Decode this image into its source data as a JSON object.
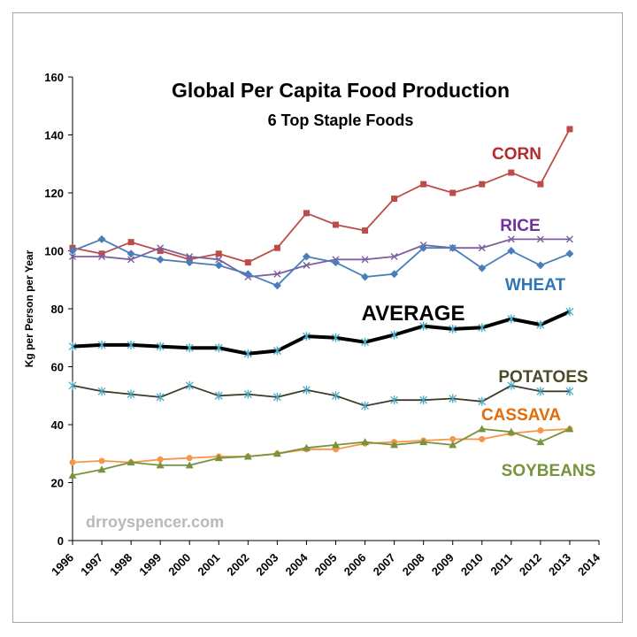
{
  "chart_data": {
    "type": "line",
    "title": "Global Per Capita Food Production",
    "subtitle": "6 Top Staple Foods",
    "ylabel": "Kg per Person per Year",
    "xlabel": "",
    "watermark": "drroyspencer.com",
    "ylim": [
      0,
      160
    ],
    "yticks": [
      0,
      20,
      40,
      60,
      80,
      100,
      120,
      140,
      160
    ],
    "xlim": [
      1996,
      2014
    ],
    "xticks": [
      "1996",
      "1997",
      "1998",
      "1999",
      "2000",
      "2001",
      "2002",
      "2003",
      "2004",
      "2005",
      "2006",
      "2007",
      "2008",
      "2009",
      "2010",
      "2011",
      "2012",
      "2013",
      "2014"
    ],
    "grid": false,
    "series": [
      {
        "name": "CORN",
        "color": "#be4b48",
        "label_color": "#b52a2a",
        "marker": "square",
        "x": [
          1996,
          1997,
          1998,
          1999,
          2000,
          2001,
          2002,
          2003,
          2004,
          2005,
          2006,
          2007,
          2008,
          2009,
          2010,
          2011,
          2012,
          2013
        ],
        "values": [
          101,
          99,
          103,
          100,
          97,
          99,
          96,
          101,
          113,
          109,
          107,
          118,
          123,
          120,
          123,
          127,
          123,
          142
        ]
      },
      {
        "name": "RICE",
        "color": "#7d60a0",
        "label_color": "#7030a0",
        "marker": "x",
        "x": [
          1996,
          1997,
          1998,
          1999,
          2000,
          2001,
          2002,
          2003,
          2004,
          2005,
          2006,
          2007,
          2008,
          2009,
          2010,
          2011,
          2012,
          2013
        ],
        "values": [
          98,
          98,
          97,
          101,
          98,
          97,
          91,
          92,
          95,
          97,
          97,
          98,
          102,
          101,
          101,
          104,
          104,
          104
        ]
      },
      {
        "name": "WHEAT",
        "color": "#4a7ebb",
        "label_color": "#2e75b6",
        "marker": "diamond",
        "x": [
          1996,
          1997,
          1998,
          1999,
          2000,
          2001,
          2002,
          2003,
          2004,
          2005,
          2006,
          2007,
          2008,
          2009,
          2010,
          2011,
          2012,
          2013
        ],
        "values": [
          100,
          104,
          99,
          97,
          96,
          95,
          92,
          88,
          98,
          96,
          91,
          92,
          101,
          101,
          94,
          100,
          95,
          99
        ]
      },
      {
        "name": "AVERAGE",
        "color": "#000000",
        "label_color": "#000000",
        "marker": "asterisk",
        "thick": true,
        "x": [
          1996,
          1997,
          1998,
          1999,
          2000,
          2001,
          2002,
          2003,
          2004,
          2005,
          2006,
          2007,
          2008,
          2009,
          2010,
          2011,
          2012,
          2013
        ],
        "values": [
          67,
          67.5,
          67.5,
          67,
          66.5,
          66.5,
          64.5,
          65.5,
          70.5,
          70,
          68.5,
          71,
          74,
          73,
          73.5,
          76.5,
          74.5,
          79
        ]
      },
      {
        "name": "POTATOES",
        "color": "#3c3c28",
        "label_color": "#4b4b2a",
        "marker": "asterisk-cyan",
        "x": [
          1996,
          1997,
          1998,
          1999,
          2000,
          2001,
          2002,
          2003,
          2004,
          2005,
          2006,
          2007,
          2008,
          2009,
          2010,
          2011,
          2012,
          2013
        ],
        "values": [
          53.5,
          51.5,
          50.5,
          49.5,
          53.5,
          50,
          50.5,
          49.5,
          52,
          50,
          46.5,
          48.5,
          48.5,
          49,
          48,
          53.5,
          51.5,
          51.5
        ]
      },
      {
        "name": "CASSAVA",
        "color": "#f79646",
        "label_color": "#e36c09",
        "marker": "circle",
        "x": [
          1996,
          1997,
          1998,
          1999,
          2000,
          2001,
          2002,
          2003,
          2004,
          2005,
          2006,
          2007,
          2008,
          2009,
          2010,
          2011,
          2012,
          2013
        ],
        "values": [
          27,
          27.5,
          27,
          28,
          28.5,
          29,
          29,
          30,
          31.5,
          31.5,
          33.5,
          34,
          34.5,
          35,
          35,
          37,
          38,
          38.5
        ]
      },
      {
        "name": "SOYBEANS",
        "color": "#77933c",
        "label_color": "#77933c",
        "marker": "triangle",
        "x": [
          1996,
          1997,
          1998,
          1999,
          2000,
          2001,
          2002,
          2003,
          2004,
          2005,
          2006,
          2007,
          2008,
          2009,
          2010,
          2011,
          2012,
          2013
        ],
        "values": [
          22.5,
          24.5,
          27,
          26,
          26,
          28.5,
          29,
          30,
          32,
          33,
          34,
          33,
          34,
          33,
          38.5,
          37.5,
          34,
          38.5
        ]
      }
    ]
  }
}
